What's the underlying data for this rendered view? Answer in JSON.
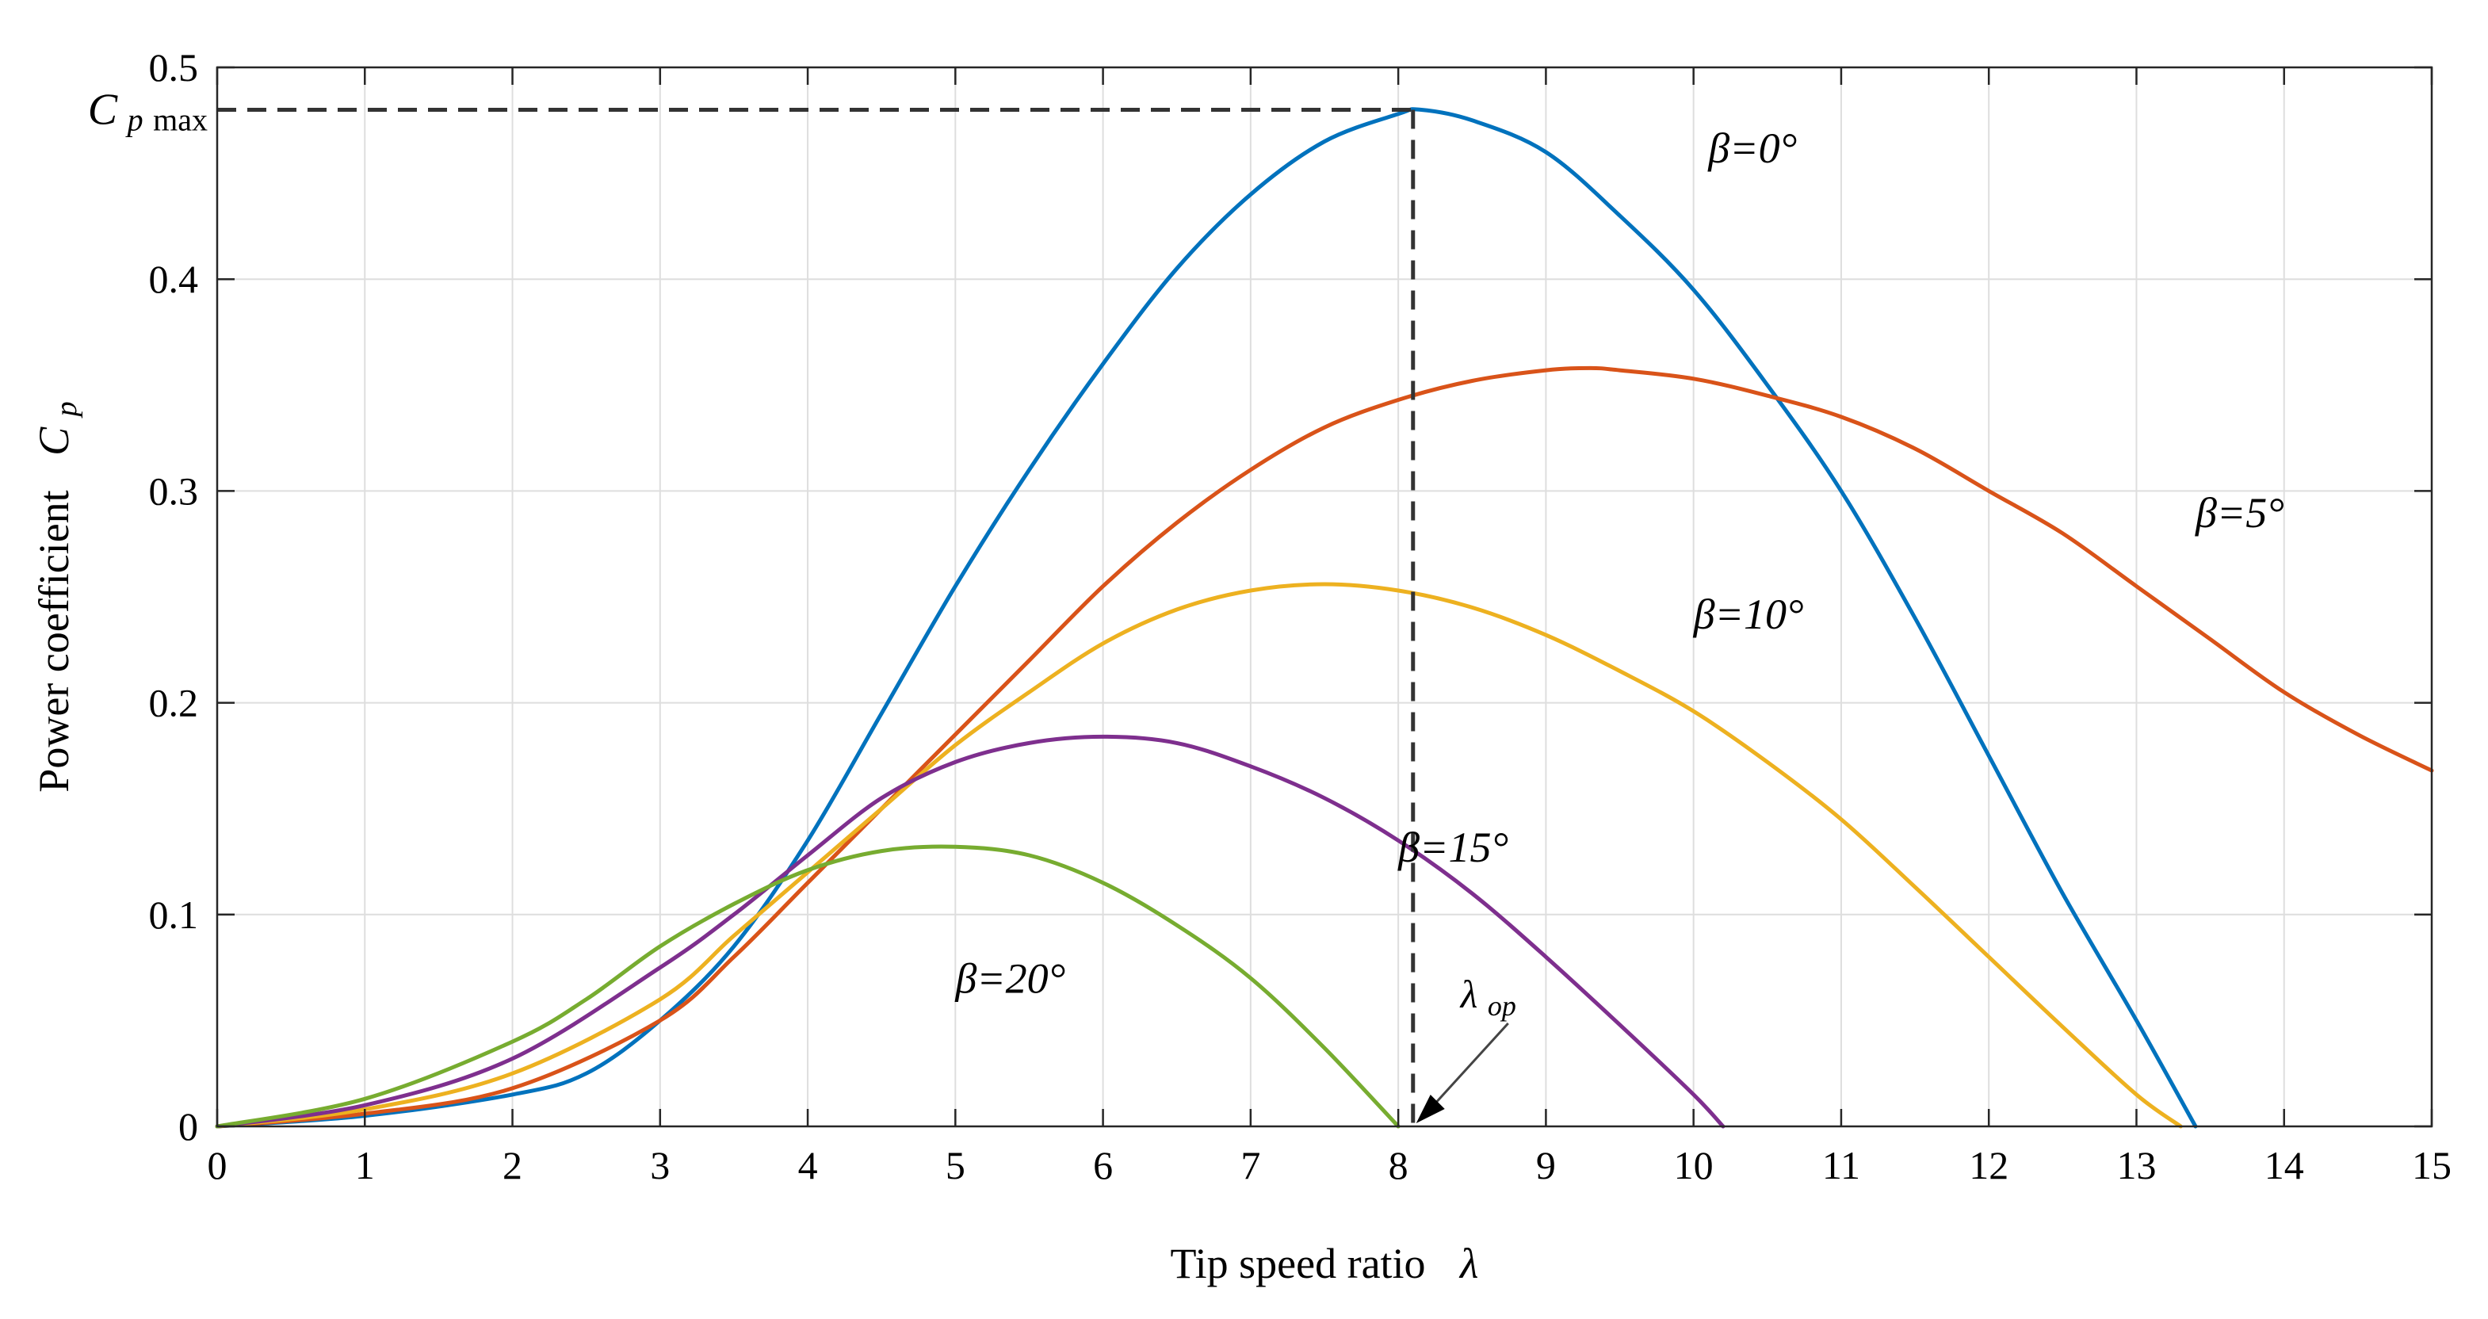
{
  "chart_data": {
    "type": "line",
    "title": "",
    "xlabel": "Tip speed ratio",
    "xlabel_symbol": "λ",
    "ylabel": "Power coefficient",
    "ylabel_symbol": "C",
    "ylabel_subscript": "p",
    "xlim": [
      0,
      15
    ],
    "ylim": [
      0,
      0.5
    ],
    "xticks": [
      0,
      1,
      2,
      3,
      4,
      5,
      6,
      7,
      8,
      9,
      10,
      11,
      12,
      13,
      14,
      15
    ],
    "yticks": [
      0,
      0.1,
      0.2,
      0.3,
      0.4,
      0.5
    ],
    "ytick_labels": [
      "0",
      "0.1",
      "0.2",
      "0.3",
      "0.4",
      "0.5"
    ],
    "grid": true,
    "series": [
      {
        "name": "β=0°",
        "color": "#0072BD",
        "x": [
          0,
          1,
          2,
          2.5,
          3,
          3.5,
          4,
          4.5,
          5,
          5.5,
          6,
          6.5,
          7,
          7.5,
          8,
          8.15,
          8.5,
          9,
          9.5,
          10,
          10.5,
          11,
          11.5,
          12,
          12.5,
          13,
          13.4
        ],
        "values": [
          0,
          0.005,
          0.015,
          0.025,
          0.05,
          0.085,
          0.135,
          0.195,
          0.255,
          0.31,
          0.36,
          0.405,
          0.44,
          0.465,
          0.478,
          0.48,
          0.475,
          0.46,
          0.43,
          0.395,
          0.35,
          0.3,
          0.24,
          0.175,
          0.11,
          0.05,
          0
        ]
      },
      {
        "name": "β=5°",
        "color": "#D95319",
        "x": [
          0,
          1,
          2,
          3,
          3.5,
          4,
          4.5,
          5,
          5.5,
          6,
          6.5,
          7,
          7.5,
          8,
          8.5,
          9,
          9.3,
          9.5,
          10,
          10.5,
          11,
          11.5,
          12,
          12.5,
          13,
          13.5,
          14,
          14.5,
          15
        ],
        "values": [
          0,
          0.006,
          0.018,
          0.05,
          0.08,
          0.115,
          0.15,
          0.185,
          0.22,
          0.255,
          0.285,
          0.31,
          0.33,
          0.343,
          0.352,
          0.357,
          0.358,
          0.357,
          0.353,
          0.345,
          0.335,
          0.32,
          0.3,
          0.28,
          0.255,
          0.23,
          0.205,
          0.185,
          0.168
        ]
      },
      {
        "name": "β=10°",
        "color": "#EDB120",
        "x": [
          0,
          1,
          2,
          3,
          3.5,
          4,
          4.5,
          5,
          5.5,
          6,
          6.5,
          7,
          7.5,
          8,
          8.5,
          9,
          9.5,
          10,
          10.5,
          11,
          11.5,
          12,
          12.5,
          13,
          13.3
        ],
        "values": [
          0,
          0.008,
          0.025,
          0.06,
          0.09,
          0.12,
          0.15,
          0.18,
          0.205,
          0.228,
          0.244,
          0.253,
          0.256,
          0.253,
          0.245,
          0.232,
          0.215,
          0.196,
          0.172,
          0.145,
          0.113,
          0.08,
          0.047,
          0.015,
          0
        ]
      },
      {
        "name": "β=15°",
        "color": "#7E2F8E",
        "x": [
          0,
          1,
          2,
          3,
          3.5,
          4,
          4.5,
          5,
          5.5,
          6,
          6.5,
          7,
          7.5,
          8,
          8.5,
          9,
          9.5,
          10,
          10.2
        ],
        "values": [
          0,
          0.01,
          0.032,
          0.075,
          0.1,
          0.128,
          0.155,
          0.172,
          0.181,
          0.184,
          0.181,
          0.17,
          0.155,
          0.135,
          0.11,
          0.08,
          0.048,
          0.015,
          0
        ]
      },
      {
        "name": "β=20°",
        "color": "#77AC30",
        "x": [
          0,
          1,
          2,
          2.5,
          3,
          3.5,
          4,
          4.5,
          5,
          5.5,
          6,
          6.5,
          7,
          7.5,
          8
        ],
        "values": [
          0,
          0.013,
          0.04,
          0.06,
          0.085,
          0.105,
          0.121,
          0.13,
          0.132,
          0.128,
          0.115,
          0.095,
          0.07,
          0.037,
          0
        ]
      }
    ],
    "series_labels": [
      "β=0°",
      "β=5°",
      "β=10°",
      "β=15°",
      "β=20°"
    ],
    "annotations": {
      "cpmax_value": 0.48,
      "cpmax_label_main": "C",
      "cpmax_label_sub": "p",
      "cpmax_label_tail": "max",
      "lambda_op_value": 8.1,
      "lambda_op_main": "λ",
      "lambda_op_sub": "op"
    }
  }
}
